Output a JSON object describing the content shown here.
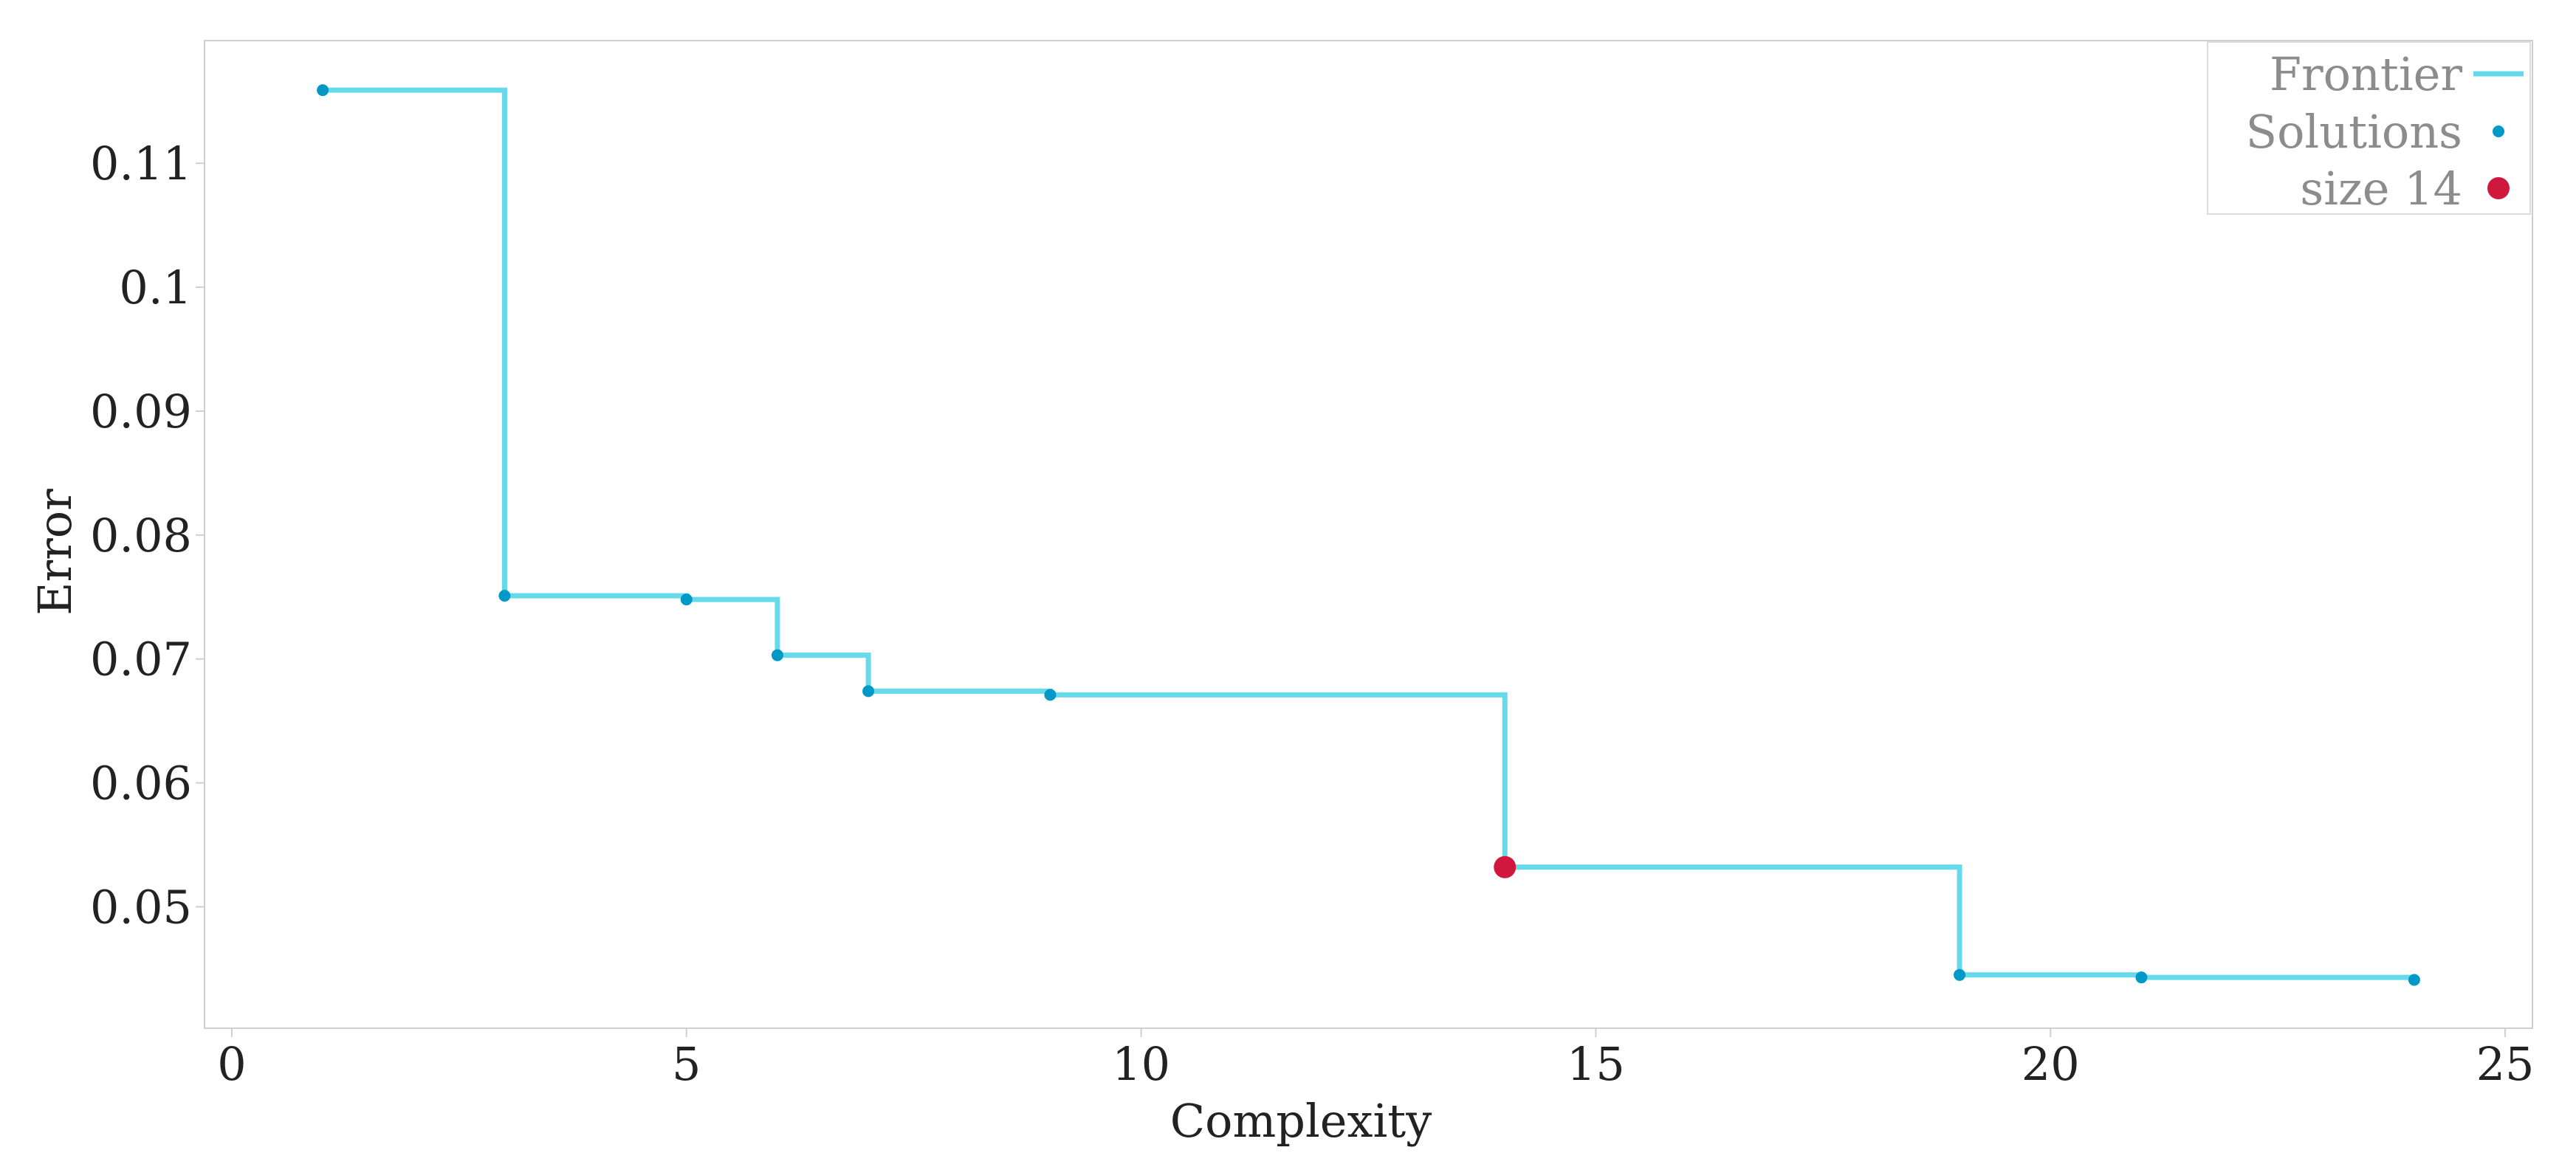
{
  "chart_data": {
    "type": "line",
    "xlabel": "Complexity",
    "ylabel": "Error",
    "xlim": [
      -0.3,
      25.3
    ],
    "ylim": [
      0.0402,
      0.1199
    ],
    "x_ticks": [
      0,
      5,
      10,
      15,
      20,
      25
    ],
    "x_tick_labels": [
      "0",
      "5",
      "10",
      "15",
      "20",
      "25"
    ],
    "y_ticks": [
      0.05,
      0.06,
      0.07,
      0.08,
      0.09,
      0.1,
      0.11
    ],
    "y_tick_labels": [
      "0.05",
      "0.06",
      "0.07",
      "0.08",
      "0.09",
      "0.1",
      "0.11"
    ],
    "grid": false,
    "legend_position": "top-right",
    "series": [
      {
        "name": "Frontier",
        "kind": "step",
        "color": "#66d9ea",
        "x": [
          1,
          3,
          5,
          6,
          7,
          9,
          14,
          19,
          21,
          24
        ],
        "y": [
          0.1159,
          0.0751,
          0.0748,
          0.0703,
          0.0674,
          0.0671,
          0.0532,
          0.0445,
          0.0443,
          0.0441
        ]
      },
      {
        "name": "Solutions",
        "kind": "scatter",
        "color": "#0099c6",
        "x": [
          1,
          3,
          5,
          6,
          7,
          9,
          14,
          19,
          21,
          24
        ],
        "y": [
          0.1159,
          0.0751,
          0.0748,
          0.0703,
          0.0674,
          0.0671,
          0.0532,
          0.0445,
          0.0443,
          0.0441
        ]
      },
      {
        "name": "size 14",
        "kind": "scatter",
        "color": "#d0183f",
        "x": [
          14
        ],
        "y": [
          0.0532
        ]
      }
    ]
  }
}
